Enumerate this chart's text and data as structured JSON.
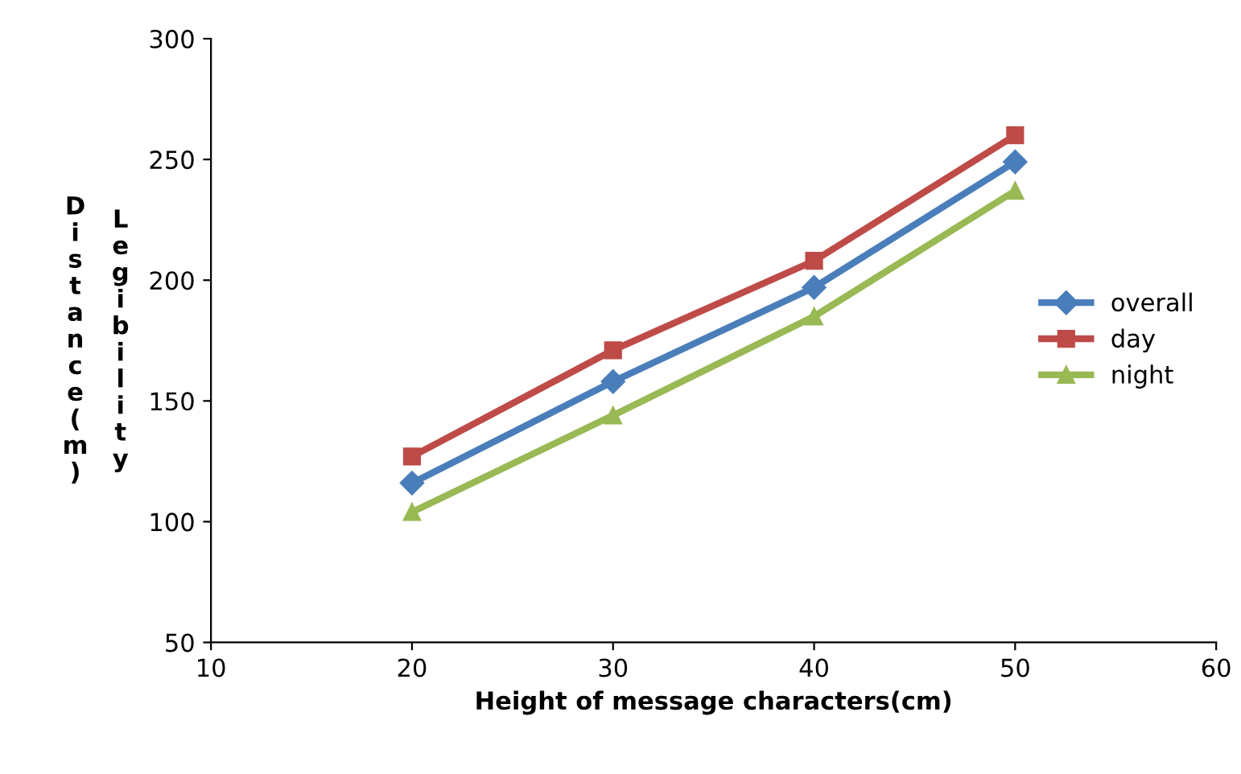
{
  "chart_data": {
    "type": "line",
    "xlabel": "Height of message characters(cm)",
    "ylabel": "Legibility Distance (m)",
    "x": [
      20,
      30,
      40,
      50
    ],
    "series": [
      {
        "name": "overall",
        "color": "#4a7ebb",
        "marker": "diamond",
        "values": [
          116,
          158,
          197,
          249
        ]
      },
      {
        "name": "day",
        "color": "#be4b48",
        "marker": "square",
        "values": [
          127,
          171,
          208,
          260
        ]
      },
      {
        "name": "night",
        "color": "#98b954",
        "marker": "triangle",
        "values": [
          104,
          144,
          185,
          237
        ]
      }
    ],
    "xlim": [
      10,
      60
    ],
    "xticks": [
      10,
      20,
      30,
      40,
      50,
      60
    ],
    "ylim": [
      50,
      300
    ],
    "yticks": [
      50,
      100,
      150,
      200,
      250,
      300
    ],
    "grid": false,
    "legend": "right",
    "line_style": "solid"
  }
}
